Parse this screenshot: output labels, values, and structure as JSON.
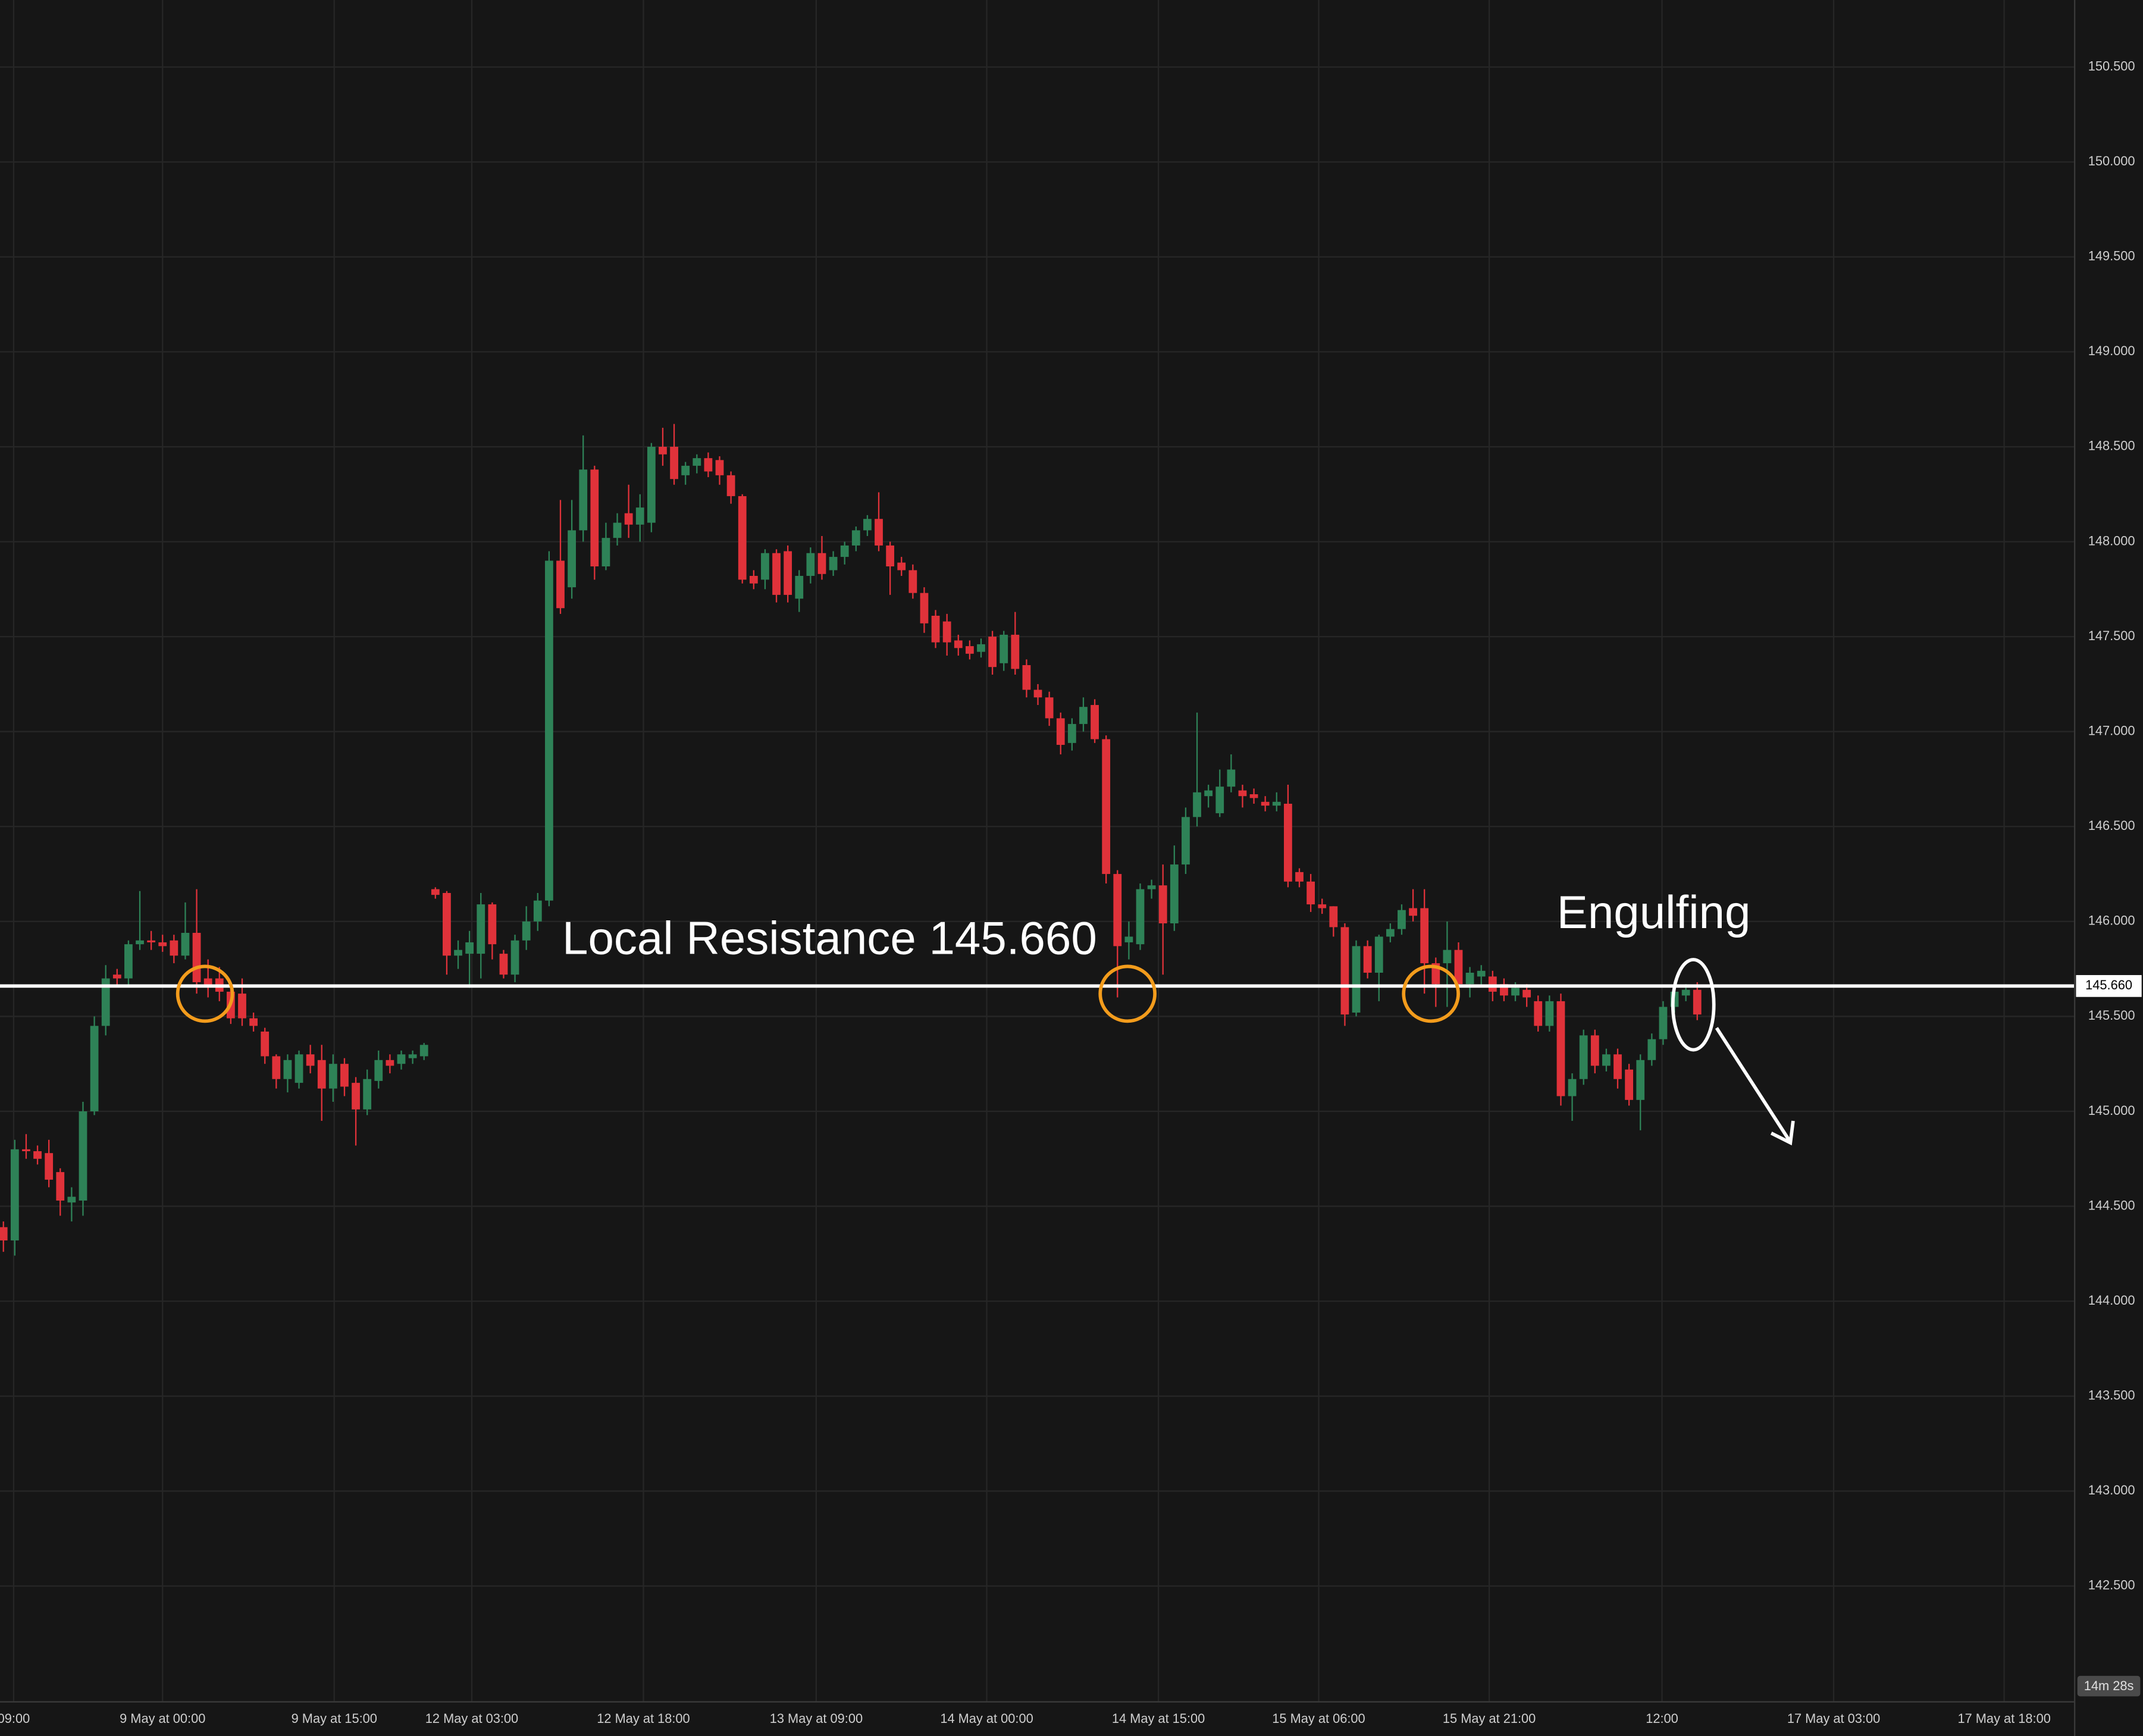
{
  "chart_data": {
    "type": "candlestick",
    "up_color": "#2e8257",
    "down_color": "#e0323a",
    "ylim": [
      141.89,
      150.853
    ],
    "yticks": [
      {
        "value": 142.5,
        "label": "142.500"
      },
      {
        "value": 143,
        "label": "143.000"
      },
      {
        "value": 143.5,
        "label": "143.500"
      },
      {
        "value": 144,
        "label": "144.000"
      },
      {
        "value": 144.5,
        "label": "144.500"
      },
      {
        "value": 145,
        "label": "145.000"
      },
      {
        "value": 145.5,
        "label": "145.500"
      },
      {
        "value": 146,
        "label": "146.000"
      },
      {
        "value": 146.5,
        "label": "146.500"
      },
      {
        "value": 147,
        "label": "147.000"
      },
      {
        "value": 147.5,
        "label": "147.500"
      },
      {
        "value": 148,
        "label": "148.000"
      },
      {
        "value": 148.5,
        "label": "148.500"
      },
      {
        "value": 149,
        "label": "149.000"
      },
      {
        "value": 149.5,
        "label": "149.500"
      },
      {
        "value": 150,
        "label": "150.000"
      },
      {
        "value": 150.5,
        "label": "150.500"
      }
    ],
    "xlim": [
      -0.3,
      182.2
    ],
    "xticks": [
      {
        "value": 0.9,
        "label": "09:00"
      },
      {
        "value": 14,
        "label": "9 May at 00:00"
      },
      {
        "value": 29.1,
        "label": "9 May at 15:00"
      },
      {
        "value": 41.2,
        "label": "12 May at 03:00"
      },
      {
        "value": 56.3,
        "label": "12 May at 18:00"
      },
      {
        "value": 71.5,
        "label": "13 May at 09:00"
      },
      {
        "value": 86.5,
        "label": "14 May at 00:00"
      },
      {
        "value": 101.6,
        "label": "14 May at 15:00"
      },
      {
        "value": 115.7,
        "label": "15 May at 06:00"
      },
      {
        "value": 130.7,
        "label": "15 May at 21:00"
      },
      {
        "value": 145.9,
        "label": "12:00"
      },
      {
        "value": 161,
        "label": "17 May at 03:00"
      },
      {
        "value": 176,
        "label": "17 May at 18:00"
      }
    ],
    "grid": true,
    "level": {
      "value": 145.66,
      "label": "145.660"
    },
    "level_color": "#ffffff",
    "resistance_label": "Local Resistance 145.660",
    "pattern_label": "Engulfing",
    "countdown": "14m 28s",
    "open": [
      144.39,
      144.32,
      144.8,
      144.79,
      144.78,
      144.68,
      144.52,
      144.53,
      145.0,
      145.45,
      145.72,
      145.7,
      145.88,
      145.9,
      145.89,
      145.9,
      145.82,
      145.94,
      145.7,
      145.7,
      145.63,
      145.62,
      145.49,
      145.42,
      145.29,
      145.17,
      145.15,
      145.3,
      145.27,
      145.12,
      145.25,
      145.15,
      145.01,
      145.16,
      145.27,
      145.25,
      145.28,
      145.29,
      146.17,
      146.15,
      145.82,
      145.83,
      145.83,
      146.09,
      145.83,
      145.72,
      145.9,
      146.0,
      146.11,
      147.9,
      147.76,
      148.06,
      148.38,
      147.87,
      148.02,
      148.15,
      148.09,
      148.1,
      148.5,
      148.5,
      148.35,
      148.4,
      148.44,
      148.43,
      148.35,
      148.24,
      147.82,
      147.8,
      147.94,
      147.95,
      147.7,
      147.82,
      147.94,
      147.85,
      147.92,
      147.98,
      148.06,
      148.12,
      147.98,
      147.89,
      147.85,
      147.73,
      147.61,
      147.58,
      147.48,
      147.45,
      147.42,
      147.5,
      147.36,
      147.51,
      147.35,
      147.22,
      147.18,
      147.07,
      146.94,
      147.04,
      147.14,
      146.96,
      146.25,
      145.89,
      145.88,
      146.17,
      146.19,
      145.99,
      146.3,
      146.55,
      146.66,
      146.57,
      146.71,
      146.69,
      146.67,
      146.63,
      146.61,
      146.62,
      146.26,
      146.21,
      146.09,
      146.08,
      145.97,
      145.52,
      145.87,
      145.73,
      145.92,
      145.96,
      146.07,
      146.07,
      145.78,
      145.78,
      145.85,
      145.67,
      145.71,
      145.71,
      145.67,
      145.61,
      145.64,
      145.58,
      145.45,
      145.58,
      145.08,
      145.17,
      145.4,
      145.24,
      145.3,
      145.22,
      145.06,
      145.27,
      145.38,
      145.55,
      145.61,
      145.64
    ],
    "high": [
      144.42,
      144.85,
      144.88,
      144.82,
      144.85,
      144.7,
      144.6,
      145.05,
      145.5,
      145.77,
      145.75,
      145.9,
      146.16,
      145.95,
      145.93,
      145.93,
      146.1,
      146.17,
      145.8,
      145.76,
      145.66,
      145.7,
      145.52,
      145.44,
      145.3,
      145.3,
      145.32,
      145.35,
      145.35,
      145.3,
      145.28,
      145.18,
      145.22,
      145.32,
      145.3,
      145.32,
      145.32,
      145.36,
      146.18,
      146.16,
      145.9,
      145.95,
      146.15,
      146.1,
      145.85,
      145.93,
      146.08,
      146.15,
      147.95,
      148.22,
      148.22,
      148.56,
      148.4,
      148.1,
      148.15,
      148.3,
      148.25,
      148.52,
      148.6,
      148.62,
      148.42,
      148.46,
      148.47,
      148.45,
      148.37,
      148.25,
      147.85,
      147.96,
      147.96,
      147.98,
      147.85,
      147.97,
      148.03,
      147.95,
      148.0,
      148.08,
      148.14,
      148.26,
      148.0,
      147.92,
      147.88,
      147.76,
      147.64,
      147.62,
      147.51,
      147.48,
      147.49,
      147.53,
      147.53,
      147.63,
      147.38,
      147.25,
      147.21,
      147.1,
      147.07,
      147.18,
      147.17,
      146.98,
      146.27,
      146.0,
      146.2,
      146.22,
      146.3,
      146.4,
      146.6,
      147.1,
      146.72,
      146.8,
      146.88,
      146.72,
      146.7,
      146.66,
      146.68,
      146.72,
      146.28,
      146.25,
      146.12,
      146.08,
      145.99,
      145.9,
      145.9,
      145.93,
      145.99,
      146.09,
      146.17,
      146.17,
      145.81,
      146.0,
      145.89,
      145.76,
      145.77,
      145.74,
      145.7,
      145.68,
      145.67,
      145.61,
      145.61,
      145.62,
      145.2,
      145.43,
      145.43,
      145.33,
      145.33,
      145.25,
      145.3,
      145.41,
      145.58,
      145.66,
      145.67,
      145.68
    ],
    "low": [
      144.26,
      144.24,
      144.75,
      144.72,
      144.6,
      144.45,
      144.42,
      144.45,
      144.98,
      145.4,
      145.66,
      145.66,
      145.85,
      145.85,
      145.84,
      145.78,
      145.8,
      145.62,
      145.6,
      145.58,
      145.46,
      145.45,
      145.42,
      145.25,
      145.12,
      145.1,
      145.12,
      145.2,
      144.95,
      145.05,
      145.08,
      144.82,
      144.98,
      145.12,
      145.2,
      145.22,
      145.25,
      145.27,
      146.12,
      145.72,
      145.75,
      145.65,
      145.7,
      145.8,
      145.7,
      145.68,
      145.85,
      145.95,
      146.08,
      147.62,
      147.7,
      148.0,
      147.8,
      147.85,
      147.98,
      148.02,
      148.0,
      148.05,
      148.4,
      148.3,
      148.3,
      148.36,
      148.34,
      148.3,
      148.2,
      147.78,
      147.75,
      147.75,
      147.68,
      147.68,
      147.63,
      147.78,
      147.8,
      147.82,
      147.88,
      147.95,
      148.03,
      147.95,
      147.72,
      147.82,
      147.7,
      147.52,
      147.44,
      147.4,
      147.4,
      147.38,
      147.39,
      147.3,
      147.32,
      147.3,
      147.18,
      147.14,
      147.03,
      146.88,
      146.9,
      147.0,
      146.94,
      146.2,
      145.6,
      145.8,
      145.85,
      146.12,
      145.72,
      145.95,
      146.25,
      146.5,
      146.6,
      146.55,
      146.68,
      146.6,
      146.62,
      146.58,
      146.58,
      146.18,
      146.18,
      146.05,
      146.04,
      145.92,
      145.45,
      145.5,
      145.7,
      145.58,
      145.89,
      145.93,
      146.0,
      145.62,
      145.55,
      145.55,
      145.62,
      145.6,
      145.66,
      145.58,
      145.58,
      145.58,
      145.55,
      145.42,
      145.42,
      145.03,
      144.95,
      145.14,
      145.2,
      145.21,
      145.12,
      145.03,
      144.9,
      145.24,
      145.35,
      145.52,
      145.58,
      145.48
    ],
    "close": [
      144.32,
      144.8,
      144.79,
      144.75,
      144.64,
      144.53,
      144.55,
      145.0,
      145.45,
      145.7,
      145.7,
      145.88,
      145.9,
      145.89,
      145.87,
      145.82,
      145.94,
      145.68,
      145.66,
      145.63,
      145.49,
      145.49,
      145.45,
      145.29,
      145.17,
      145.27,
      145.3,
      145.24,
      145.12,
      145.25,
      145.13,
      145.01,
      145.17,
      145.27,
      145.24,
      145.3,
      145.3,
      145.35,
      146.14,
      145.82,
      145.85,
      145.89,
      146.09,
      145.88,
      145.72,
      145.9,
      146.0,
      146.11,
      147.9,
      147.65,
      148.06,
      148.38,
      147.87,
      148.02,
      148.1,
      148.09,
      148.18,
      148.5,
      148.46,
      148.33,
      148.4,
      148.44,
      148.37,
      148.35,
      148.24,
      147.8,
      147.78,
      147.94,
      147.72,
      147.72,
      147.82,
      147.94,
      147.83,
      147.92,
      147.98,
      148.06,
      148.12,
      147.98,
      147.87,
      147.85,
      147.73,
      147.57,
      147.47,
      147.47,
      147.44,
      147.41,
      147.46,
      147.34,
      147.51,
      147.33,
      147.22,
      147.18,
      147.07,
      146.93,
      147.04,
      147.13,
      146.96,
      146.25,
      145.87,
      145.92,
      146.17,
      146.19,
      145.99,
      146.3,
      146.55,
      146.68,
      146.69,
      146.71,
      146.8,
      146.66,
      146.65,
      146.61,
      146.63,
      146.21,
      146.21,
      146.09,
      146.07,
      145.97,
      145.51,
      145.87,
      145.73,
      145.92,
      145.96,
      146.06,
      146.03,
      145.78,
      145.67,
      145.85,
      145.67,
      145.73,
      145.74,
      145.63,
      145.61,
      145.65,
      145.6,
      145.45,
      145.58,
      145.08,
      145.17,
      145.4,
      145.24,
      145.3,
      145.17,
      145.06,
      145.27,
      145.38,
      145.55,
      145.63,
      145.64,
      145.51
    ]
  }
}
